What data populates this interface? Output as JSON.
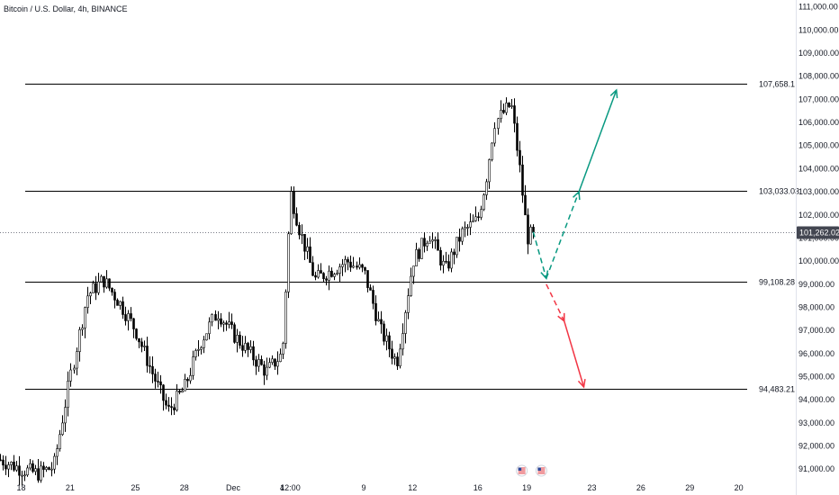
{
  "header": {
    "title": "Bitcoin / U.S. Dollar, 4h, BINANCE"
  },
  "colors": {
    "candle": "#000000",
    "level_line": "#000000",
    "up_arrow": "#089981",
    "down_arrow": "#f23645",
    "price_tag_bg": "#434651"
  },
  "icons": [
    "us-flag-event-icon",
    "us-flag-event-icon"
  ],
  "chart_data": {
    "type": "candlestick",
    "title": "Bitcoin / U.S. Dollar, 4h, BINANCE",
    "y_axis": {
      "ticks": [
        "111,000.00",
        "110,000.00",
        "109,000.00",
        "108,000.00",
        "107,000.00",
        "106,000.00",
        "105,000.00",
        "104,000.00",
        "103,000.00",
        "102,000.00",
        "101,000.00",
        "100,000.00",
        "99,000.00",
        "98,000.00",
        "97,000.00",
        "96,000.00",
        "95,000.00",
        "94,000.00",
        "93,000.00",
        "92,000.00",
        "91,000.00"
      ],
      "tick_values": [
        111000,
        110000,
        109000,
        108000,
        107000,
        106000,
        105000,
        104000,
        103000,
        102000,
        101000,
        100000,
        99000,
        98000,
        97000,
        96000,
        95000,
        94000,
        93000,
        92000,
        91000
      ],
      "range": [
        90500,
        111300
      ]
    },
    "x_axis": {
      "labels": [
        "18",
        "21",
        "25",
        "28",
        "Dec",
        "4",
        "12:00",
        "9",
        "12",
        "16",
        "19",
        "23",
        "26",
        "29",
        "20"
      ],
      "label_days": [
        0,
        3,
        7,
        10,
        13,
        16,
        16.5,
        21,
        24,
        28,
        31,
        35,
        38,
        41,
        44
      ],
      "range_days": [
        -1.3,
        47.5
      ]
    },
    "current_price": {
      "value": 101262.02,
      "label": "101,262.02"
    },
    "levels": [
      {
        "value": 107658.1,
        "label": "107,658.1"
      },
      {
        "value": 103033.03,
        "label": "103,033.03"
      },
      {
        "value": 99108.28,
        "label": "99,108.28"
      },
      {
        "value": 94483.21,
        "label": "94,483.21"
      }
    ],
    "anchors": [
      [
        -1.3,
        91400
      ],
      [
        0,
        91000
      ],
      [
        1,
        90800
      ],
      [
        2,
        91100
      ],
      [
        3,
        95000
      ],
      [
        4,
        98500
      ],
      [
        5,
        99200
      ],
      [
        6,
        98200
      ],
      [
        7,
        97000
      ],
      [
        8,
        95200
      ],
      [
        9,
        93500
      ],
      [
        10,
        94500
      ],
      [
        11,
        96500
      ],
      [
        12,
        97800
      ],
      [
        13,
        96800
      ],
      [
        14,
        96000
      ],
      [
        15,
        95200
      ],
      [
        16,
        96000
      ],
      [
        16.5,
        103000
      ],
      [
        17,
        101500
      ],
      [
        18,
        99200
      ],
      [
        19,
        99600
      ],
      [
        20,
        100000
      ],
      [
        21,
        99500
      ],
      [
        22,
        97000
      ],
      [
        23,
        95600
      ],
      [
        24,
        100000
      ],
      [
        25,
        101200
      ],
      [
        26,
        99600
      ],
      [
        27,
        101200
      ],
      [
        28,
        101800
      ],
      [
        28.5,
        103500
      ],
      [
        29,
        106000
      ],
      [
        30,
        106800
      ],
      [
        30.5,
        104200
      ],
      [
        31,
        101000
      ],
      [
        31.4,
        101262
      ]
    ],
    "projections": [
      {
        "name": "dip",
        "from": [
          31.4,
          101262
        ],
        "to": [
          32.2,
          99250
        ],
        "color": "up",
        "style": "dashed"
      },
      {
        "name": "rebound",
        "from": [
          32.2,
          99250
        ],
        "to": [
          34.2,
          103000
        ],
        "color": "up",
        "style": "dashed"
      },
      {
        "name": "rally",
        "from": [
          34.2,
          103000
        ],
        "to": [
          36.5,
          107400
        ],
        "color": "up",
        "style": "solid"
      },
      {
        "name": "breakdown-dashed",
        "from": [
          32.2,
          99000
        ],
        "to": [
          33.3,
          97400
        ],
        "color": "down",
        "style": "dashed"
      },
      {
        "name": "breakdown",
        "from": [
          33.3,
          97400
        ],
        "to": [
          34.5,
          94550
        ],
        "color": "down",
        "style": "solid"
      }
    ],
    "event_markers_days": [
      30.7,
      31.9
    ],
    "grid": false,
    "legend": "none"
  }
}
